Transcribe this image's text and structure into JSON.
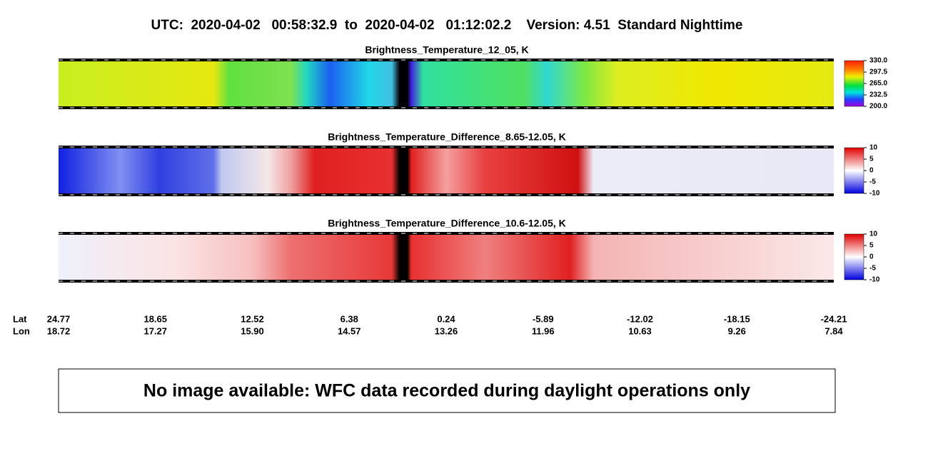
{
  "title": "UTC:  2020-04-02   00:58:32.9  to  2020-04-02   01:12:02.2    Version: 4.51  Standard Nighttime",
  "panels": [
    {
      "title": "Brightness_Temperature_12_05, K",
      "colorbar": {
        "range": [
          200,
          330
        ],
        "ticks": [
          {
            "value": 330,
            "label": "330.0"
          },
          297.5,
          {
            "value": 265,
            "label": "265.0"
          },
          232.5,
          {
            "value": 200,
            "label": "200.0"
          }
        ]
      }
    },
    {
      "title": "Brightness_Temperature_Difference_8.65-12.05, K",
      "colorbar": {
        "range": [
          -10,
          10
        ],
        "ticks": [
          10,
          5,
          0,
          -5,
          -10
        ]
      }
    },
    {
      "title": "Brightness_Temperature_Difference_10.6-12.05, K",
      "colorbar": {
        "range": [
          -10,
          10
        ],
        "ticks": [
          10,
          5,
          0,
          -5,
          -10
        ]
      }
    }
  ],
  "x_axis": {
    "row_labels": [
      "Lat",
      "Lon"
    ],
    "lat": [
      24.77,
      18.65,
      12.52,
      6.38,
      0.24,
      -5.89,
      -12.02,
      -18.15,
      -24.21
    ],
    "lon": [
      18.72,
      17.27,
      {
        "value": 15.9,
        "label": "15.90"
      },
      14.57,
      13.26,
      11.96,
      10.63,
      9.26,
      7.84
    ]
  },
  "notice": "No image available: WFC data recorded during daylight operations only"
}
